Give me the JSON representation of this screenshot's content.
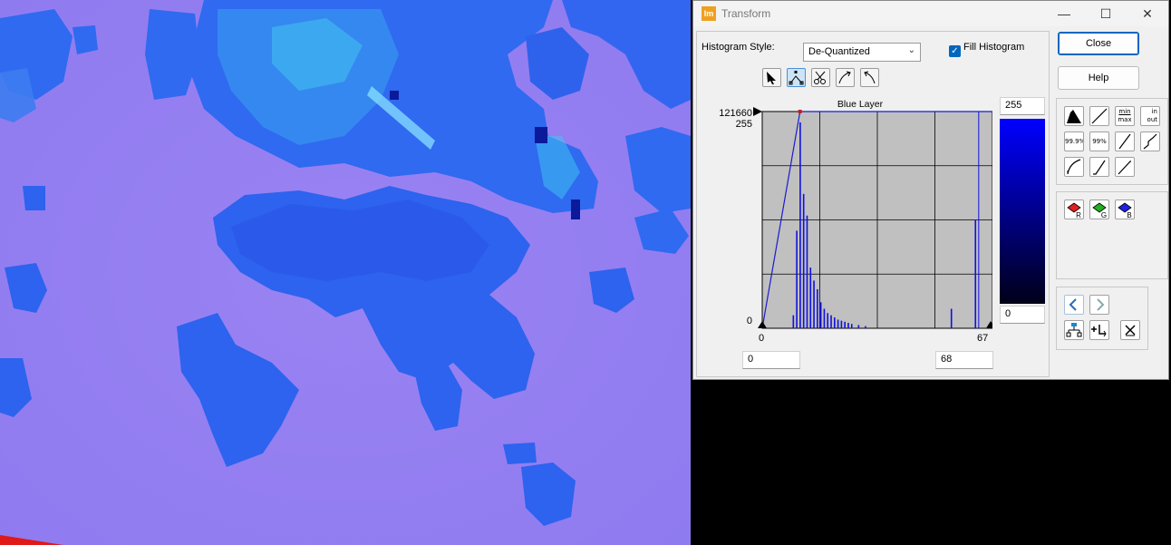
{
  "window": {
    "title": "Transform",
    "app_icon_text": "Im",
    "minimize_glyph": "—",
    "maximize_glyph": "☐",
    "close_glyph": "✕"
  },
  "histogram_style": {
    "label": "Histogram Style:",
    "value": "De-Quantized"
  },
  "fill_histogram": {
    "label": "Fill Histogram",
    "checked": true
  },
  "buttons": {
    "close": "Close",
    "help": "Help"
  },
  "chart": {
    "layer_title": "Blue Layer",
    "y_max_count": "121660",
    "y_max_value": "255",
    "y_min": "0",
    "x_min_label": "0",
    "x_max_label": "67",
    "input_min": "0",
    "input_max": "68",
    "output_max": "255",
    "output_min": "0"
  },
  "chart_data": {
    "type": "bar",
    "title": "Blue Layer",
    "xlim": [
      0,
      67
    ],
    "ylim": [
      0,
      255
    ],
    "grid": true,
    "x": [
      9,
      10,
      11,
      12,
      13,
      14,
      15,
      16,
      17,
      18,
      19,
      20,
      21,
      22,
      23,
      24,
      25,
      26,
      28,
      30,
      55,
      62
    ],
    "values": [
      0.06,
      0.45,
      0.95,
      0.62,
      0.52,
      0.28,
      0.22,
      0.18,
      0.12,
      0.09,
      0.07,
      0.06,
      0.05,
      0.04,
      0.035,
      0.03,
      0.025,
      0.02,
      0.015,
      0.01,
      0.09,
      0.5
    ],
    "transform_curve": [
      [
        0,
        0
      ],
      [
        11,
        255
      ],
      [
        67,
        255
      ]
    ],
    "edge_spike_x": 63
  },
  "color_tools": [
    "red-layer-icon",
    "green-layer-icon",
    "blue-layer-icon"
  ],
  "color_tool_labels": [
    "R",
    "G",
    "B"
  ],
  "preset_labels": {
    "minmax_top": "min",
    "minmax_bottom": "max",
    "inout_in": "in",
    "inout_out": "out",
    "p999": "99.9%",
    "p99": "99%"
  }
}
